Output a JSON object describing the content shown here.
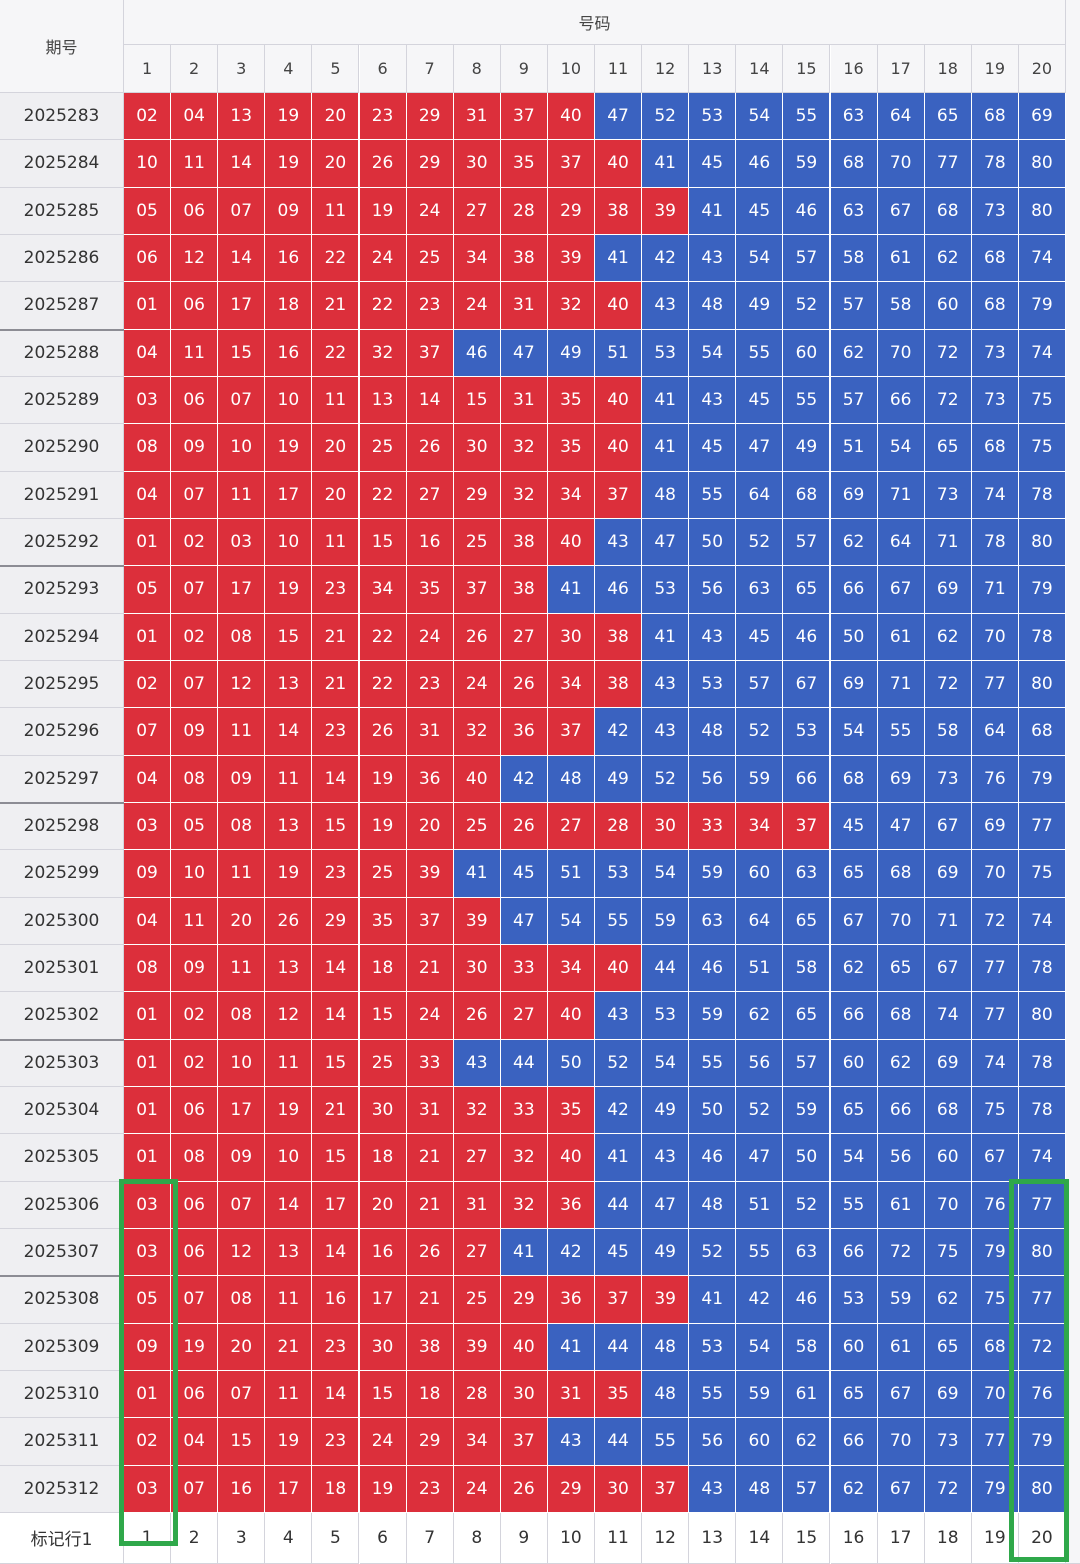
{
  "header": {
    "period": "期号",
    "numbers": "号码",
    "columns": [
      "1",
      "2",
      "3",
      "4",
      "5",
      "6",
      "7",
      "8",
      "9",
      "10",
      "11",
      "12",
      "13",
      "14",
      "15",
      "16",
      "17",
      "18",
      "19",
      "20"
    ]
  },
  "colors": {
    "low": "#dc2f3b",
    "high": "#3a62c0"
  },
  "rows": [
    {
      "period": "2025283",
      "numbers": [
        "02",
        "04",
        "13",
        "19",
        "20",
        "23",
        "29",
        "31",
        "37",
        "40",
        "47",
        "52",
        "53",
        "54",
        "55",
        "63",
        "64",
        "65",
        "68",
        "69"
      ]
    },
    {
      "period": "2025284",
      "numbers": [
        "10",
        "11",
        "14",
        "19",
        "20",
        "26",
        "29",
        "30",
        "35",
        "37",
        "40",
        "41",
        "45",
        "46",
        "59",
        "68",
        "70",
        "77",
        "78",
        "80"
      ]
    },
    {
      "period": "2025285",
      "numbers": [
        "05",
        "06",
        "07",
        "09",
        "11",
        "19",
        "24",
        "27",
        "28",
        "29",
        "38",
        "39",
        "41",
        "45",
        "46",
        "63",
        "67",
        "68",
        "73",
        "80"
      ]
    },
    {
      "period": "2025286",
      "numbers": [
        "06",
        "12",
        "14",
        "16",
        "22",
        "24",
        "25",
        "34",
        "38",
        "39",
        "41",
        "42",
        "43",
        "54",
        "57",
        "58",
        "61",
        "62",
        "68",
        "74"
      ]
    },
    {
      "period": "2025287",
      "numbers": [
        "01",
        "06",
        "17",
        "18",
        "21",
        "22",
        "23",
        "24",
        "31",
        "32",
        "40",
        "43",
        "48",
        "49",
        "52",
        "57",
        "58",
        "60",
        "68",
        "79"
      ]
    },
    {
      "period": "2025288",
      "numbers": [
        "04",
        "11",
        "15",
        "16",
        "22",
        "32",
        "37",
        "46",
        "47",
        "49",
        "51",
        "53",
        "54",
        "55",
        "60",
        "62",
        "70",
        "72",
        "73",
        "74"
      ]
    },
    {
      "period": "2025289",
      "numbers": [
        "03",
        "06",
        "07",
        "10",
        "11",
        "13",
        "14",
        "15",
        "31",
        "35",
        "40",
        "41",
        "43",
        "45",
        "55",
        "57",
        "66",
        "72",
        "73",
        "75"
      ]
    },
    {
      "period": "2025290",
      "numbers": [
        "08",
        "09",
        "10",
        "19",
        "20",
        "25",
        "26",
        "30",
        "32",
        "35",
        "40",
        "41",
        "45",
        "47",
        "49",
        "51",
        "54",
        "65",
        "68",
        "75"
      ]
    },
    {
      "period": "2025291",
      "numbers": [
        "04",
        "07",
        "11",
        "17",
        "20",
        "22",
        "27",
        "29",
        "32",
        "34",
        "37",
        "48",
        "55",
        "64",
        "68",
        "69",
        "71",
        "73",
        "74",
        "78"
      ]
    },
    {
      "period": "2025292",
      "numbers": [
        "01",
        "02",
        "03",
        "10",
        "11",
        "15",
        "16",
        "25",
        "38",
        "40",
        "43",
        "47",
        "50",
        "52",
        "57",
        "62",
        "64",
        "71",
        "78",
        "80"
      ]
    },
    {
      "period": "2025293",
      "numbers": [
        "05",
        "07",
        "17",
        "19",
        "23",
        "34",
        "35",
        "37",
        "38",
        "41",
        "46",
        "53",
        "56",
        "63",
        "65",
        "66",
        "67",
        "69",
        "71",
        "79"
      ]
    },
    {
      "period": "2025294",
      "numbers": [
        "01",
        "02",
        "08",
        "15",
        "21",
        "22",
        "24",
        "26",
        "27",
        "30",
        "38",
        "41",
        "43",
        "45",
        "46",
        "50",
        "61",
        "62",
        "70",
        "78"
      ]
    },
    {
      "period": "2025295",
      "numbers": [
        "02",
        "07",
        "12",
        "13",
        "21",
        "22",
        "23",
        "24",
        "26",
        "34",
        "38",
        "43",
        "53",
        "57",
        "67",
        "69",
        "71",
        "72",
        "77",
        "80"
      ]
    },
    {
      "period": "2025296",
      "numbers": [
        "07",
        "09",
        "11",
        "14",
        "23",
        "26",
        "31",
        "32",
        "36",
        "37",
        "42",
        "43",
        "48",
        "52",
        "53",
        "54",
        "55",
        "58",
        "64",
        "68"
      ]
    },
    {
      "period": "2025297",
      "numbers": [
        "04",
        "08",
        "09",
        "11",
        "14",
        "19",
        "36",
        "40",
        "42",
        "48",
        "49",
        "52",
        "56",
        "59",
        "66",
        "68",
        "69",
        "73",
        "76",
        "79"
      ]
    },
    {
      "period": "2025298",
      "numbers": [
        "03",
        "05",
        "08",
        "13",
        "15",
        "19",
        "20",
        "25",
        "26",
        "27",
        "28",
        "30",
        "33",
        "34",
        "37",
        "45",
        "47",
        "67",
        "69",
        "77"
      ]
    },
    {
      "period": "2025299",
      "numbers": [
        "09",
        "10",
        "11",
        "19",
        "23",
        "25",
        "39",
        "41",
        "45",
        "51",
        "53",
        "54",
        "59",
        "60",
        "63",
        "65",
        "68",
        "69",
        "70",
        "75"
      ]
    },
    {
      "period": "2025300",
      "numbers": [
        "04",
        "11",
        "20",
        "26",
        "29",
        "35",
        "37",
        "39",
        "47",
        "54",
        "55",
        "59",
        "63",
        "64",
        "65",
        "67",
        "70",
        "71",
        "72",
        "74"
      ]
    },
    {
      "period": "2025301",
      "numbers": [
        "08",
        "09",
        "11",
        "13",
        "14",
        "18",
        "21",
        "30",
        "33",
        "34",
        "40",
        "44",
        "46",
        "51",
        "58",
        "62",
        "65",
        "67",
        "77",
        "78"
      ]
    },
    {
      "period": "2025302",
      "numbers": [
        "01",
        "02",
        "08",
        "12",
        "14",
        "15",
        "24",
        "26",
        "27",
        "40",
        "43",
        "53",
        "59",
        "62",
        "65",
        "66",
        "68",
        "74",
        "77",
        "80"
      ]
    },
    {
      "period": "2025303",
      "numbers": [
        "01",
        "02",
        "10",
        "11",
        "15",
        "25",
        "33",
        "43",
        "44",
        "50",
        "52",
        "54",
        "55",
        "56",
        "57",
        "60",
        "62",
        "69",
        "74",
        "78"
      ]
    },
    {
      "period": "2025304",
      "numbers": [
        "01",
        "06",
        "17",
        "19",
        "21",
        "30",
        "31",
        "32",
        "33",
        "35",
        "42",
        "49",
        "50",
        "52",
        "59",
        "65",
        "66",
        "68",
        "75",
        "78"
      ]
    },
    {
      "period": "2025305",
      "numbers": [
        "01",
        "08",
        "09",
        "10",
        "15",
        "18",
        "21",
        "27",
        "32",
        "40",
        "41",
        "43",
        "46",
        "47",
        "50",
        "54",
        "56",
        "60",
        "67",
        "74"
      ]
    },
    {
      "period": "2025306",
      "numbers": [
        "03",
        "06",
        "07",
        "14",
        "17",
        "20",
        "21",
        "31",
        "32",
        "36",
        "44",
        "47",
        "48",
        "51",
        "52",
        "55",
        "61",
        "70",
        "76",
        "77"
      ]
    },
    {
      "period": "2025307",
      "numbers": [
        "03",
        "06",
        "12",
        "13",
        "14",
        "16",
        "26",
        "27",
        "41",
        "42",
        "45",
        "49",
        "52",
        "55",
        "63",
        "66",
        "72",
        "75",
        "79",
        "80"
      ]
    },
    {
      "period": "2025308",
      "numbers": [
        "05",
        "07",
        "08",
        "11",
        "16",
        "17",
        "21",
        "25",
        "29",
        "36",
        "37",
        "39",
        "41",
        "42",
        "46",
        "53",
        "59",
        "62",
        "75",
        "77"
      ]
    },
    {
      "period": "2025309",
      "numbers": [
        "09",
        "19",
        "20",
        "21",
        "23",
        "30",
        "38",
        "39",
        "40",
        "41",
        "44",
        "48",
        "53",
        "54",
        "58",
        "60",
        "61",
        "65",
        "68",
        "72"
      ]
    },
    {
      "period": "2025310",
      "numbers": [
        "01",
        "06",
        "07",
        "11",
        "14",
        "15",
        "18",
        "28",
        "30",
        "31",
        "35",
        "48",
        "55",
        "59",
        "61",
        "65",
        "67",
        "69",
        "70",
        "76"
      ]
    },
    {
      "period": "2025311",
      "numbers": [
        "02",
        "04",
        "15",
        "19",
        "23",
        "24",
        "29",
        "34",
        "37",
        "43",
        "44",
        "55",
        "56",
        "60",
        "62",
        "66",
        "70",
        "73",
        "77",
        "79"
      ]
    },
    {
      "period": "2025312",
      "numbers": [
        "03",
        "07",
        "16",
        "17",
        "18",
        "19",
        "23",
        "24",
        "26",
        "29",
        "30",
        "37",
        "43",
        "48",
        "57",
        "62",
        "67",
        "72",
        "79",
        "80"
      ]
    }
  ],
  "footer": {
    "label": "标记行1",
    "cells": [
      "1",
      "2",
      "3",
      "4",
      "5",
      "6",
      "7",
      "8",
      "9",
      "10",
      "11",
      "12",
      "13",
      "14",
      "15",
      "16",
      "17",
      "18",
      "19",
      "20"
    ]
  }
}
